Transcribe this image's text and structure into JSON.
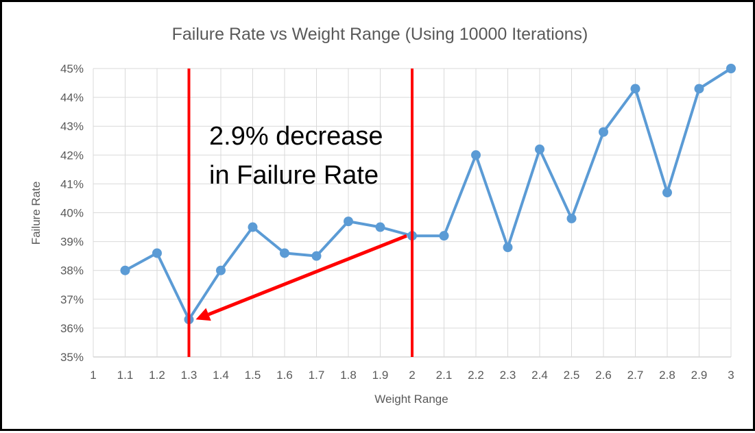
{
  "chart_data": {
    "type": "line",
    "title": "Failure Rate vs Weight Range (Using 10000 Iterations)",
    "xlabel": "Weight Range",
    "ylabel": "Failure Rate",
    "xlim": [
      1,
      3
    ],
    "ylim": [
      0.35,
      0.45
    ],
    "x_ticks": [
      "1",
      "1.1",
      "1.2",
      "1.3",
      "1.4",
      "1.5",
      "1.6",
      "1.7",
      "1.8",
      "1.9",
      "2",
      "2.1",
      "2.2",
      "2.3",
      "2.4",
      "2.5",
      "2.6",
      "2.7",
      "2.8",
      "2.9",
      "3"
    ],
    "y_ticks": [
      "35%",
      "36%",
      "37%",
      "38%",
      "39%",
      "40%",
      "41%",
      "42%",
      "43%",
      "44%",
      "45%"
    ],
    "grid": true,
    "series": [
      {
        "name": "Failure Rate",
        "color": "#5b9bd5",
        "x": [
          1.1,
          1.2,
          1.3,
          1.4,
          1.5,
          1.6,
          1.7,
          1.8,
          1.9,
          2.0,
          2.1,
          2.2,
          2.3,
          2.4,
          2.5,
          2.6,
          2.7,
          2.8,
          2.9,
          3.0
        ],
        "values": [
          0.38,
          0.386,
          0.363,
          0.38,
          0.395,
          0.386,
          0.385,
          0.397,
          0.395,
          0.392,
          0.392,
          0.42,
          0.388,
          0.422,
          0.398,
          0.428,
          0.443,
          0.407,
          0.443,
          0.45
        ]
      }
    ],
    "annotations": {
      "text_line1": "2.9% decrease",
      "text_line2": "in Failure Rate",
      "color": "#ff0000",
      "vertical_lines_x": [
        1.3,
        2.0
      ],
      "arrow_from": {
        "x": 2.0,
        "y": 0.392
      },
      "arrow_to": {
        "x": 1.3,
        "y": 0.363
      }
    }
  }
}
